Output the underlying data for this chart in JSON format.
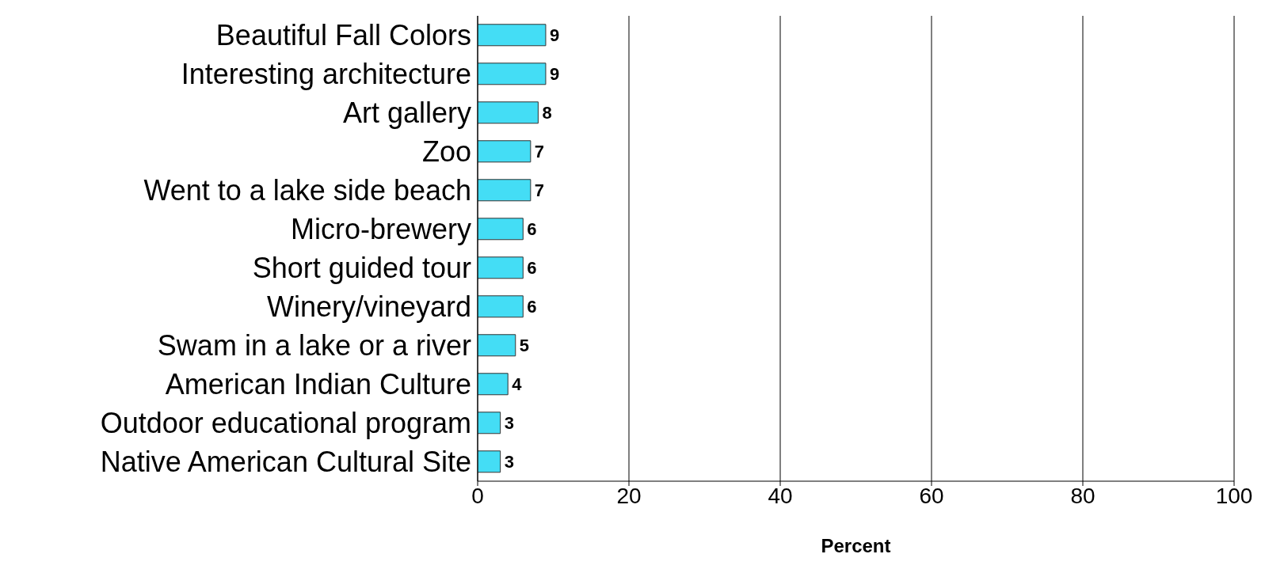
{
  "chart_data": {
    "type": "bar",
    "orientation": "horizontal",
    "xlabel": "Percent",
    "categories": [
      "Beautiful Fall Colors",
      "Interesting architecture",
      "Art gallery",
      "Zoo",
      "Went to a lake side beach",
      "Micro-brewery",
      "Short guided tour",
      "Winery/vineyard",
      "Swam in a lake or a river",
      "American Indian Culture",
      "Outdoor educational program",
      "Native American Cultural Site"
    ],
    "values": [
      9,
      9,
      8,
      7,
      7,
      6,
      6,
      6,
      5,
      4,
      3,
      3
    ],
    "color": "#44ddf5",
    "xlim": [
      0,
      100
    ],
    "xticks": [
      0,
      20,
      40,
      60,
      80,
      100
    ],
    "grid": "x",
    "data_labels": true
  }
}
